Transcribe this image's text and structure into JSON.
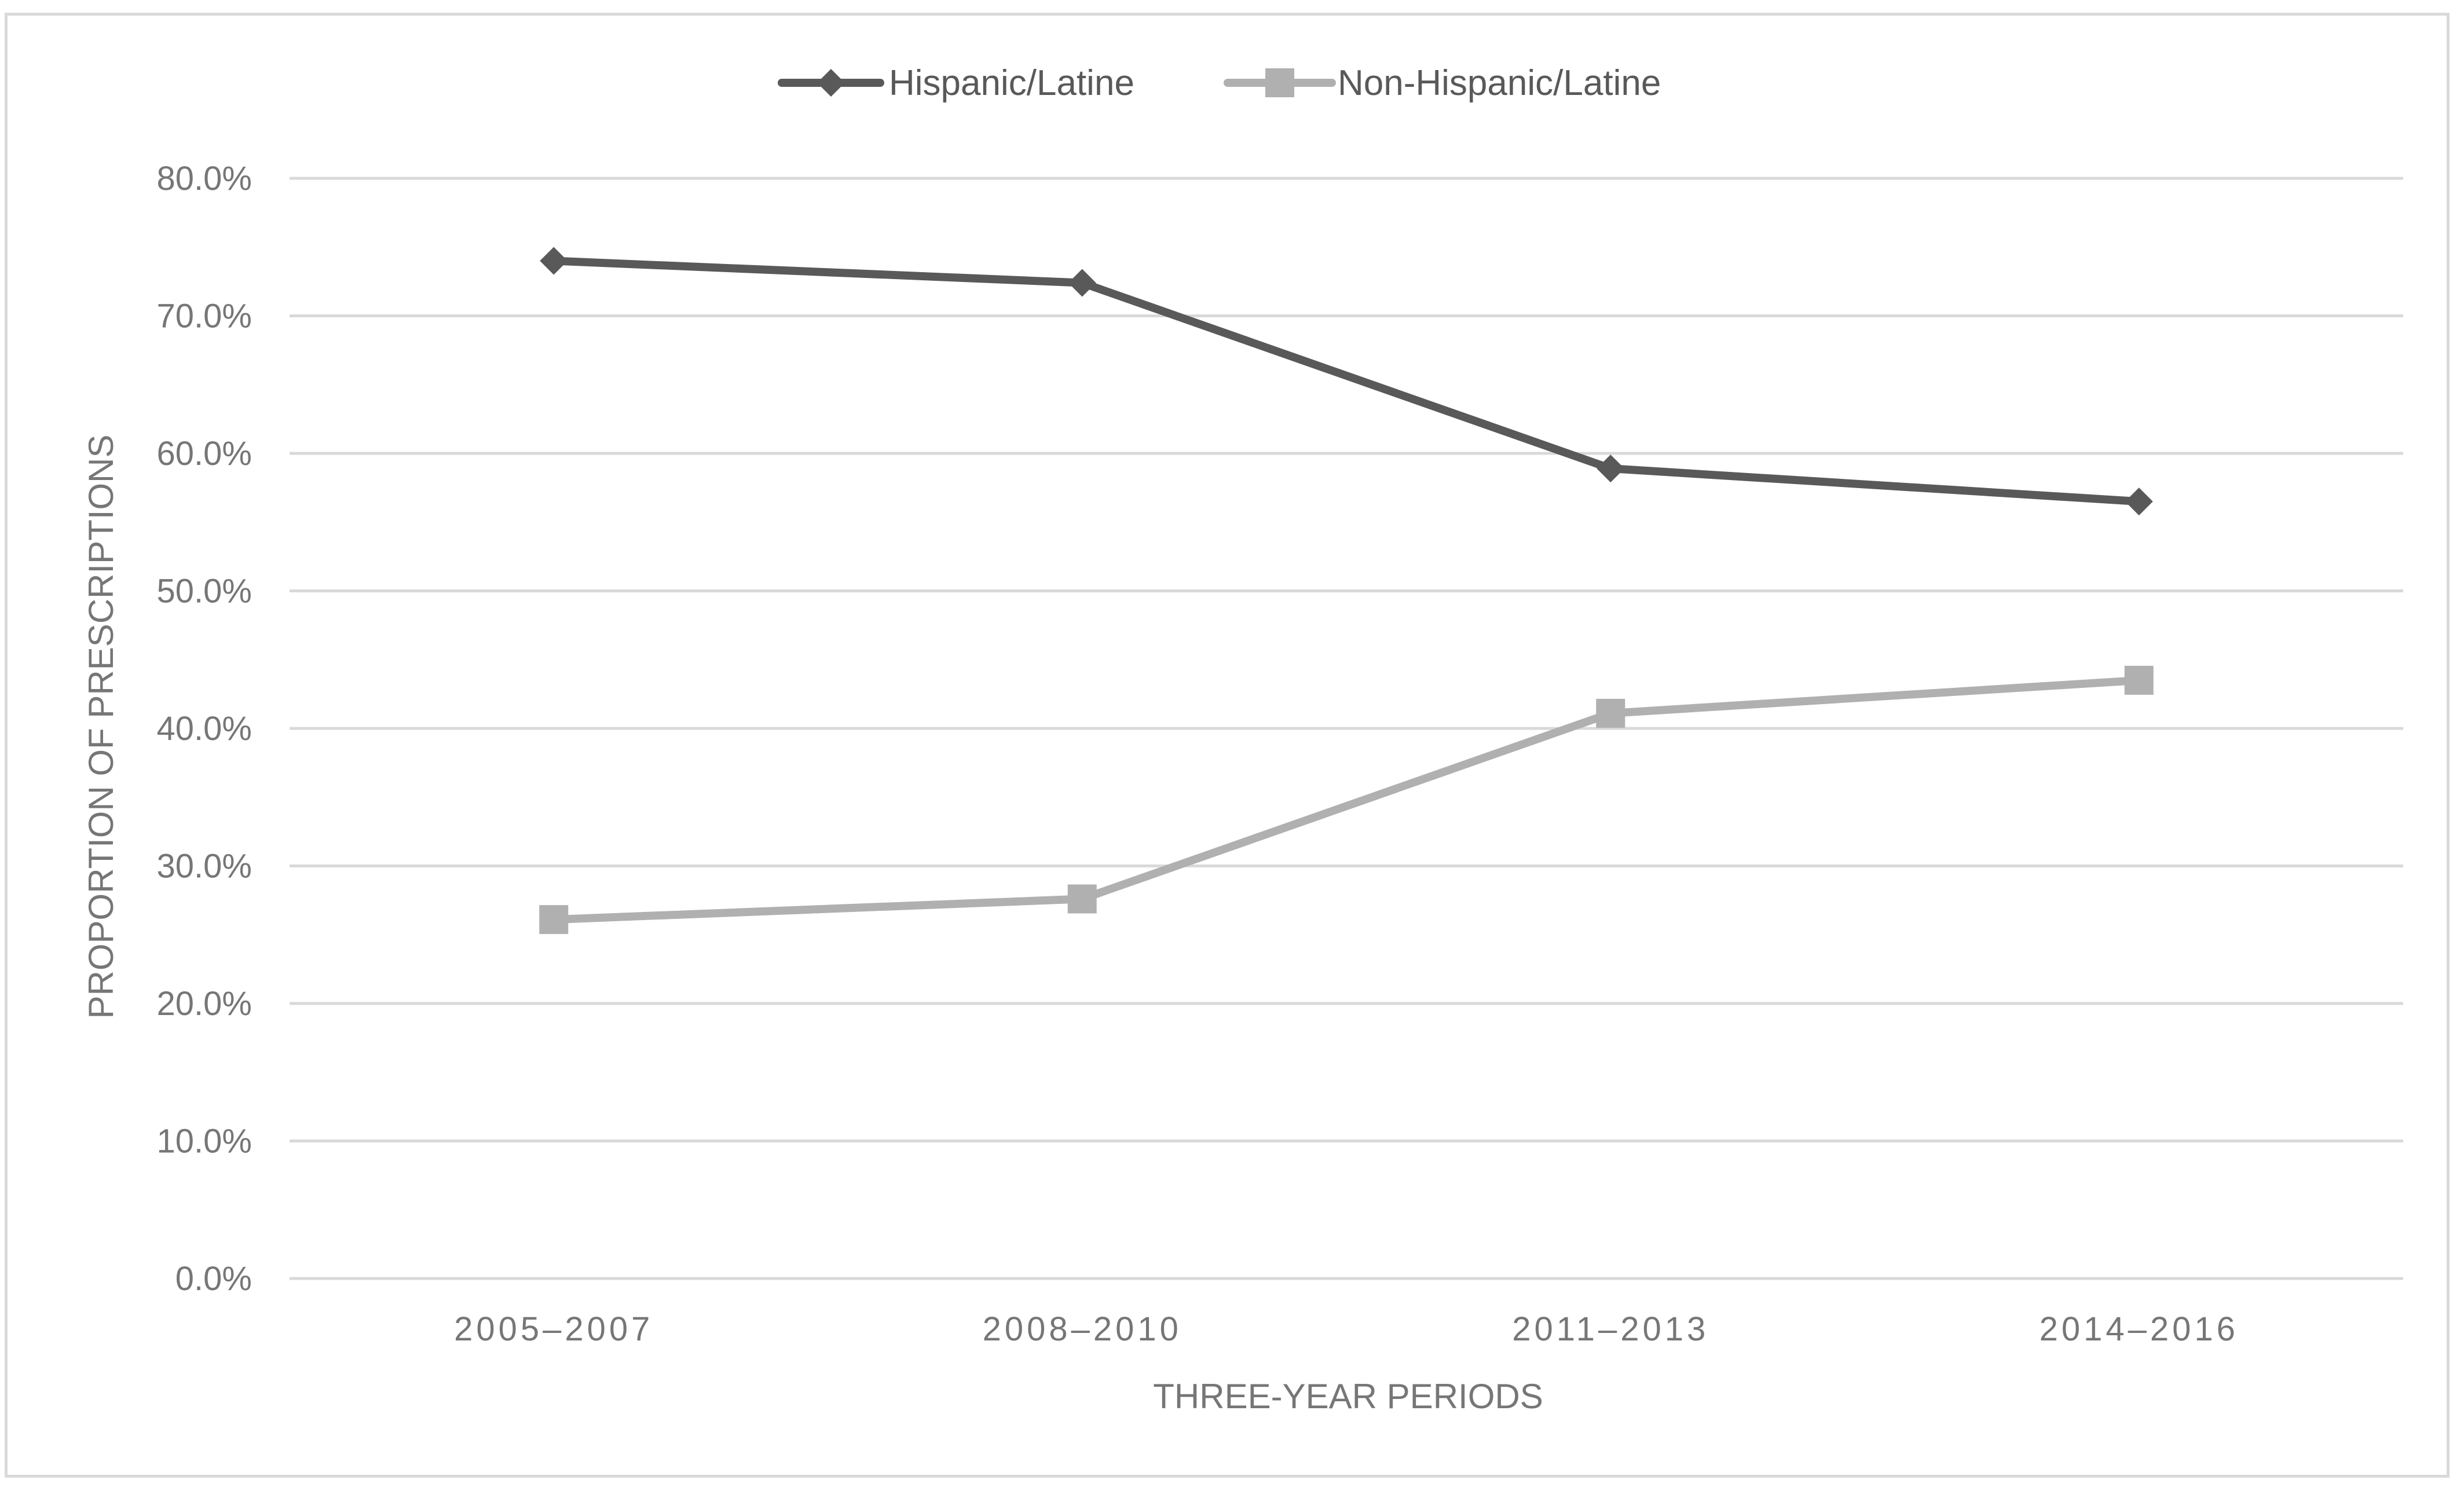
{
  "chart_data": {
    "type": "line",
    "title": "",
    "xlabel": "THREE-YEAR PERIODS",
    "ylabel": "PROPORTION OF PRESCRIPTIONS",
    "categories": [
      "2005–2007",
      "2008–2010",
      "2011–2013",
      "2014–2016"
    ],
    "ylim": [
      0,
      80
    ],
    "yticks": [
      0,
      10,
      20,
      30,
      40,
      50,
      60,
      70,
      80
    ],
    "ytick_labels": [
      "0.0%",
      "10.0%",
      "20.0%",
      "30.0%",
      "40.0%",
      "50.0%",
      "60.0%",
      "70.0%",
      "80.0%"
    ],
    "grid": true,
    "legend_position": "top-center",
    "series": [
      {
        "name": "Hispanic/Latine",
        "values": [
          74.0,
          72.4,
          58.9,
          56.5
        ],
        "color": "#595959",
        "marker": "diamond"
      },
      {
        "name": "Non-Hispanic/Latine",
        "values": [
          26.1,
          27.6,
          41.1,
          43.5
        ],
        "color": "#b0b0b0",
        "marker": "square"
      }
    ]
  }
}
